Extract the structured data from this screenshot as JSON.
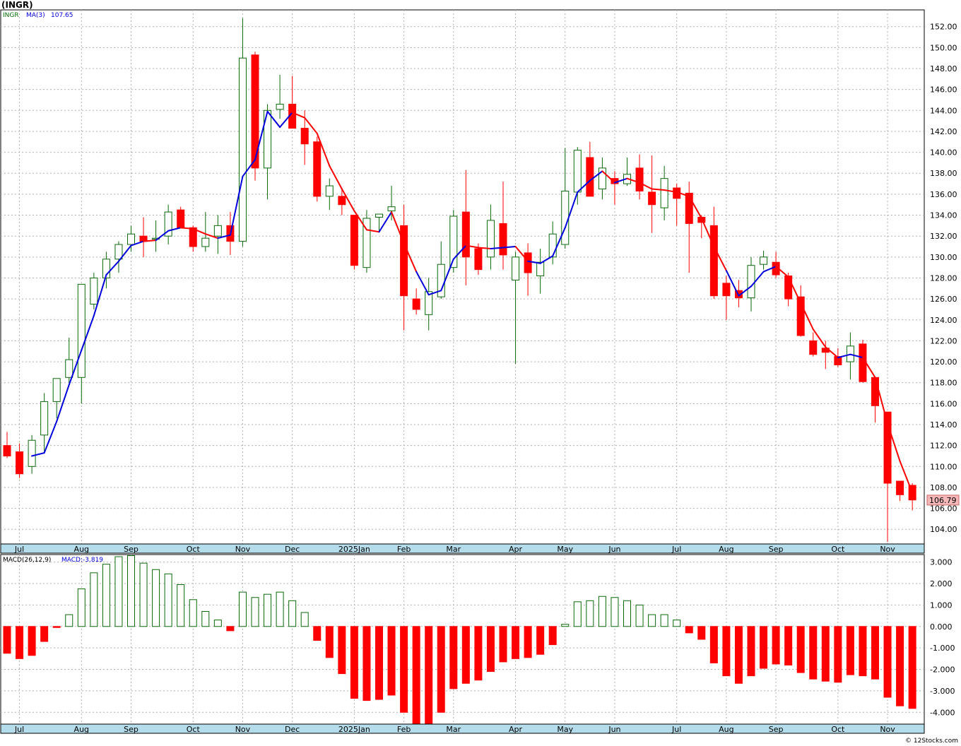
{
  "header": {
    "title": "(INGR)"
  },
  "footer": {
    "credit": "© 12Stocks.com"
  },
  "colors": {
    "up": "#0a6a0a",
    "down": "#ff0000",
    "ma_rising": "#0000dd",
    "ma_falling": "#ff0000",
    "axis_band": "#b4dcea",
    "grid": "#b0b0b0",
    "last_price_box": "#f4b8b8"
  },
  "chart_data": [
    {
      "type": "candlestick",
      "legend": {
        "symbol": "INGR",
        "ma_label": "MA(3)",
        "ma_value": "107.65"
      },
      "last_price": "106.79",
      "ylim": [
        102.6,
        153.6
      ],
      "y_ticks": [
        "104.00",
        "106.00",
        "108.00",
        "110.00",
        "112.00",
        "114.00",
        "116.00",
        "118.00",
        "120.00",
        "122.00",
        "124.00",
        "126.00",
        "128.00",
        "130.00",
        "132.00",
        "134.00",
        "136.00",
        "138.00",
        "140.00",
        "142.00",
        "144.00",
        "146.00",
        "148.00",
        "150.00",
        "152.00"
      ],
      "x_labels": [
        "Jul",
        "Aug",
        "Sep",
        "Oct",
        "Nov",
        "Dec",
        "2025Jan",
        "Feb",
        "Mar",
        "Apr",
        "May",
        "Jun",
        "Jul",
        "Aug",
        "Sep",
        "Oct",
        "Nov"
      ],
      "x_label_index": [
        1,
        6,
        10,
        15,
        19,
        23,
        28,
        32,
        36,
        41,
        45,
        49,
        54,
        58,
        62,
        67,
        71
      ],
      "candles": [
        [
          112.0,
          113.3,
          110.8,
          111.0
        ],
        [
          111.4,
          112.2,
          108.9,
          109.3
        ],
        [
          110.0,
          113.0,
          109.3,
          112.5
        ],
        [
          113.0,
          117.0,
          111.3,
          116.2
        ],
        [
          116.2,
          118.2,
          114.6,
          118.4
        ],
        [
          118.5,
          122.3,
          118.0,
          120.2
        ],
        [
          118.5,
          127.4,
          116.0,
          127.4
        ],
        [
          125.5,
          128.5,
          125.0,
          128.0
        ],
        [
          128.0,
          130.5,
          127.0,
          129.8
        ],
        [
          129.8,
          131.5,
          128.5,
          131.2
        ],
        [
          131.2,
          133.0,
          130.5,
          132.2
        ],
        [
          132.0,
          133.8,
          130.0,
          131.5
        ],
        [
          131.8,
          133.5,
          130.5,
          131.8
        ],
        [
          132.0,
          135.0,
          131.2,
          134.3
        ],
        [
          134.5,
          134.8,
          132.8,
          132.8
        ],
        [
          132.8,
          133.0,
          130.5,
          131.0
        ],
        [
          131.0,
          134.3,
          130.5,
          131.8
        ],
        [
          132.0,
          134.0,
          130.3,
          133.0
        ],
        [
          133.0,
          134.3,
          130.2,
          131.5
        ],
        [
          131.5,
          152.8,
          131.0,
          149.0
        ],
        [
          149.3,
          149.6,
          137.3,
          138.5
        ],
        [
          138.5,
          144.6,
          135.5,
          144.0
        ],
        [
          144.1,
          147.4,
          143.2,
          144.6
        ],
        [
          144.6,
          147.3,
          142.3,
          142.3
        ],
        [
          142.3,
          144.0,
          138.8,
          140.8
        ],
        [
          141.0,
          141.5,
          135.3,
          135.8
        ],
        [
          135.8,
          137.5,
          134.5,
          136.8
        ],
        [
          135.8,
          136.6,
          134.0,
          135.0
        ],
        [
          134.0,
          134.0,
          128.8,
          129.2
        ],
        [
          129.0,
          134.5,
          128.5,
          133.7
        ],
        [
          133.8,
          134.0,
          132.5,
          134.1
        ],
        [
          134.4,
          136.8,
          133.5,
          134.8
        ],
        [
          133.0,
          135.0,
          123.0,
          126.3
        ],
        [
          126.0,
          127.0,
          124.5,
          125.0
        ],
        [
          124.5,
          128.0,
          123.0,
          126.7
        ],
        [
          126.2,
          131.5,
          126.0,
          129.3
        ],
        [
          129.0,
          134.5,
          128.5,
          133.9
        ],
        [
          134.3,
          138.3,
          127.3,
          130.0
        ],
        [
          130.8,
          131.3,
          128.3,
          128.8
        ],
        [
          130.0,
          135.0,
          128.8,
          133.5
        ],
        [
          133.2,
          137.2,
          128.8,
          130.2
        ],
        [
          127.8,
          130.5,
          119.8,
          130.0
        ],
        [
          130.4,
          131.3,
          126.3,
          128.5
        ],
        [
          128.2,
          130.8,
          126.5,
          129.5
        ],
        [
          130.0,
          133.4,
          129.3,
          132.2
        ],
        [
          131.2,
          140.4,
          130.8,
          136.3
        ],
        [
          136.2,
          140.5,
          135.0,
          140.2
        ],
        [
          139.5,
          141.0,
          135.8,
          135.8
        ],
        [
          136.5,
          139.5,
          135.5,
          138.5
        ],
        [
          137.5,
          138.2,
          135.0,
          137.0
        ],
        [
          137.0,
          139.5,
          136.8,
          137.9
        ],
        [
          138.5,
          139.8,
          135.5,
          136.3
        ],
        [
          136.2,
          139.7,
          132.3,
          135.0
        ],
        [
          134.7,
          138.7,
          133.5,
          137.5
        ],
        [
          136.6,
          137.0,
          133.0,
          135.6
        ],
        [
          136.1,
          137.2,
          128.5,
          133.2
        ],
        [
          133.8,
          134.0,
          131.8,
          133.3
        ],
        [
          133.0,
          134.8,
          126.0,
          126.3
        ],
        [
          127.5,
          128.2,
          124.0,
          126.3
        ],
        [
          126.8,
          127.8,
          125.2,
          126.1
        ],
        [
          126.1,
          130.0,
          124.8,
          129.2
        ],
        [
          129.3,
          130.6,
          128.8,
          130.0
        ],
        [
          129.5,
          130.5,
          128.0,
          128.3
        ],
        [
          128.2,
          128.5,
          125.3,
          126.0
        ],
        [
          126.2,
          127.3,
          122.4,
          122.5
        ],
        [
          122.0,
          122.8,
          120.5,
          120.7
        ],
        [
          121.3,
          122.0,
          119.3,
          120.9
        ],
        [
          120.5,
          121.3,
          119.5,
          119.7
        ],
        [
          120.0,
          122.8,
          118.3,
          121.5
        ],
        [
          121.7,
          122.1,
          118.0,
          118.1
        ],
        [
          118.5,
          118.5,
          114.2,
          115.8
        ],
        [
          115.2,
          115.2,
          102.8,
          108.4
        ],
        [
          108.6,
          108.6,
          106.7,
          107.3
        ],
        [
          108.2,
          108.4,
          105.8,
          106.8
        ]
      ],
      "ma": [
        null,
        null,
        111.0,
        111.3,
        114.3,
        117.8,
        121.1,
        124.4,
        128.3,
        129.6,
        131.1,
        131.5,
        131.6,
        132.5,
        132.8,
        132.7,
        132.2,
        131.8,
        132.1,
        137.7,
        139.3,
        143.9,
        142.4,
        143.8,
        143.3,
        141.8,
        138.7,
        136.5,
        134.4,
        132.6,
        132.4,
        134.3,
        131.3,
        128.6,
        126.4,
        126.8,
        129.8,
        131.1,
        130.9,
        130.8,
        130.9,
        131.0,
        129.6,
        129.4,
        130.1,
        132.8,
        136.2,
        137.3,
        138.2,
        137.1,
        137.5,
        137.1,
        136.5,
        136.4,
        136.2,
        135.8,
        133.7,
        131.0,
        128.7,
        126.3,
        127.2,
        128.6,
        129.1,
        128.1,
        125.6,
        123.1,
        121.4,
        120.4,
        120.7,
        120.4,
        118.5,
        114.1,
        110.5,
        107.5
      ],
      "ma_dir": [
        "",
        "",
        "u",
        "u",
        "u",
        "u",
        "u",
        "u",
        "u",
        "u",
        "u",
        "u",
        "d",
        "u",
        "u",
        "d",
        "d",
        "d",
        "u",
        "u",
        "u",
        "u",
        "u",
        "u",
        "d",
        "d",
        "d",
        "d",
        "d",
        "d",
        "d",
        "u",
        "d",
        "d",
        "u",
        "u",
        "u",
        "u",
        "d",
        "d",
        "u",
        "u",
        "d",
        "u",
        "u",
        "u",
        "u",
        "u",
        "u",
        "d",
        "u",
        "d",
        "d",
        "d",
        "d",
        "d",
        "d",
        "d",
        "d",
        "u",
        "u",
        "u",
        "u",
        "d",
        "d",
        "d",
        "d",
        "d",
        "u",
        "u",
        "d",
        "d",
        "d",
        "d"
      ]
    },
    {
      "type": "macd_histogram",
      "legend": {
        "label": "MACD(26,12,9)",
        "value_label": "MACD:-3.819"
      },
      "ylim": [
        -4.55,
        3.35
      ],
      "y_ticks": [
        "3.000",
        "2.000",
        "1.000",
        "0.000",
        "-1.000",
        "-2.000",
        "-3.000",
        "-4.000"
      ],
      "values": [
        -1.25,
        -1.5,
        -1.35,
        -0.7,
        -0.05,
        0.55,
        1.75,
        2.5,
        2.9,
        3.25,
        3.3,
        2.95,
        2.65,
        2.45,
        1.95,
        1.25,
        0.7,
        0.3,
        -0.2,
        1.6,
        1.35,
        1.5,
        1.6,
        1.2,
        0.65,
        -0.65,
        -1.45,
        -2.2,
        -3.35,
        -3.45,
        -3.4,
        -3.2,
        -4.0,
        -4.55,
        -4.55,
        -4.0,
        -2.9,
        -2.65,
        -2.5,
        -2.1,
        -1.65,
        -1.5,
        -1.45,
        -1.3,
        -0.85,
        0.1,
        1.15,
        1.2,
        1.4,
        1.35,
        1.2,
        1.0,
        0.55,
        0.55,
        0.3,
        -0.3,
        -0.6,
        -1.7,
        -2.3,
        -2.65,
        -2.3,
        -1.95,
        -1.75,
        -1.8,
        -2.15,
        -2.45,
        -2.55,
        -2.6,
        -2.25,
        -2.3,
        -2.45,
        -3.3,
        -3.7,
        -3.82
      ]
    }
  ]
}
